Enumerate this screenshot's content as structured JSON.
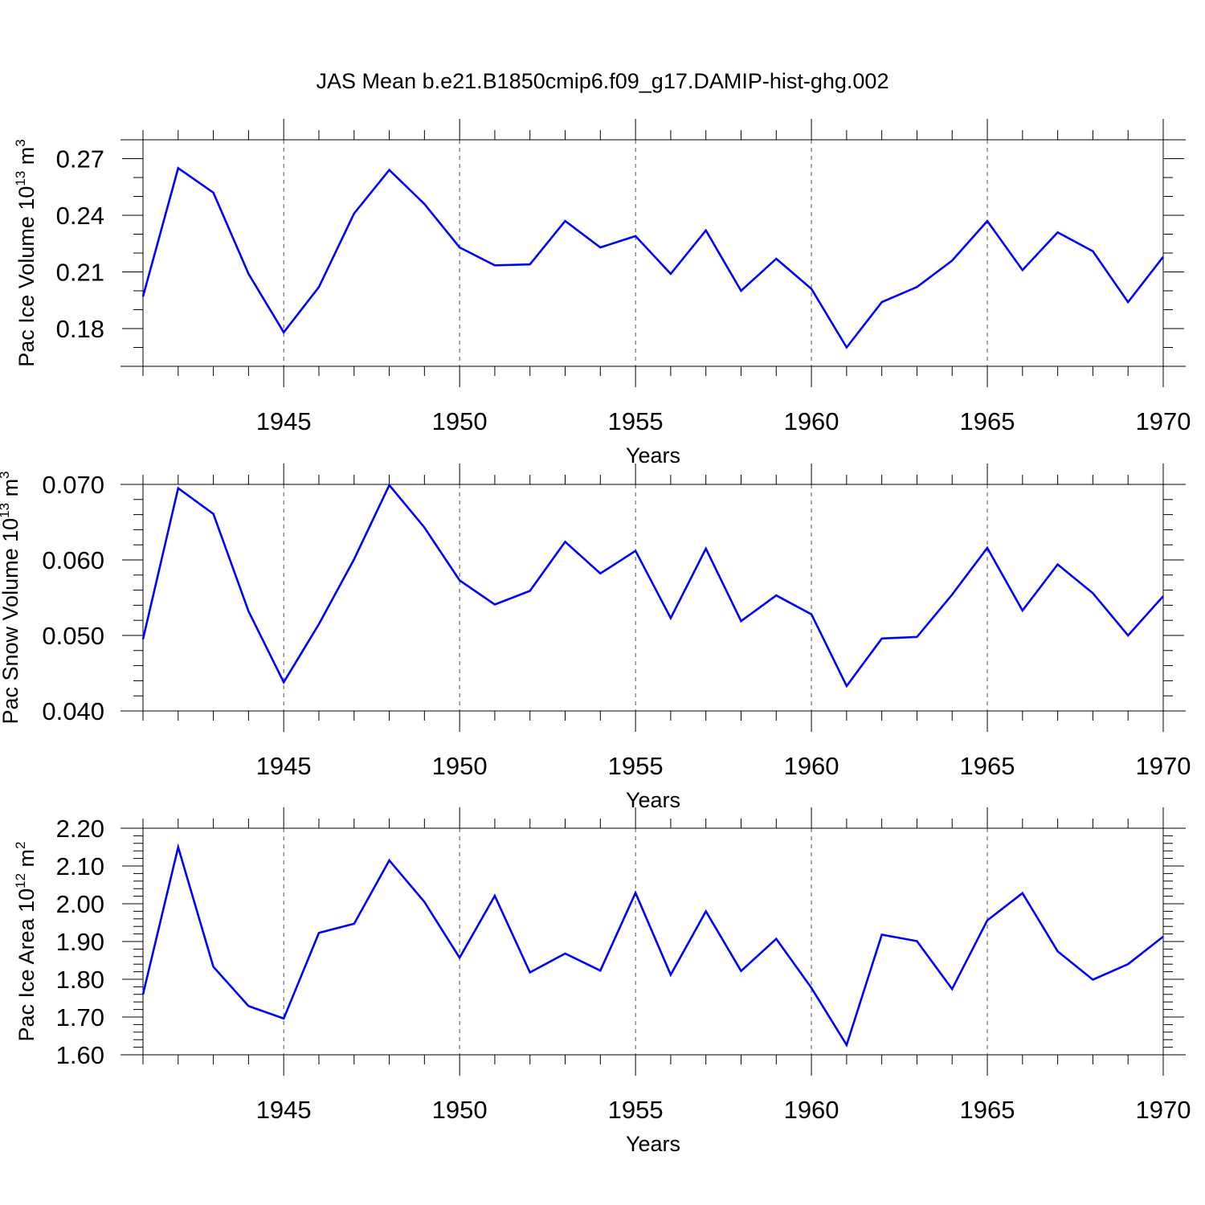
{
  "title": "JAS Mean b.e21.B1850cmip6.f09_g17.DAMIP-hist-ghg.002",
  "colors": {
    "line": "#0000ff",
    "axis": "#000000",
    "grid": "#555555"
  },
  "chart_data": [
    {
      "type": "line",
      "ylabel_main": "Pac Ice Volume 10",
      "ylabel_exp": "13",
      "ylabel_tail": " m",
      "ylabel_unit_exp": "3",
      "xlabel": "Years",
      "xlim": [
        1941,
        1970
      ],
      "ylim": [
        0.16,
        0.28
      ],
      "yticks": [
        0.18,
        0.21,
        0.24,
        0.27
      ],
      "ytick_labels": [
        "0.18",
        "0.21",
        "0.24",
        "0.27"
      ],
      "yminor_step": 0.01,
      "xticks": [
        1945,
        1950,
        1955,
        1960,
        1965,
        1970
      ],
      "xtick_labels": [
        "1945",
        "1950",
        "1955",
        "1960",
        "1965",
        "1970"
      ],
      "grid": "dashed vertical at major x ticks",
      "x": [
        1941,
        1942,
        1943,
        1944,
        1945,
        1946,
        1947,
        1948,
        1949,
        1950,
        1951,
        1952,
        1953,
        1954,
        1955,
        1956,
        1957,
        1958,
        1959,
        1960,
        1961,
        1962,
        1963,
        1964,
        1965,
        1966,
        1967,
        1968,
        1969,
        1970
      ],
      "series": [
        {
          "values": [
            0.197,
            0.265,
            0.252,
            0.209,
            0.178,
            0.202,
            0.241,
            0.264,
            0.246,
            0.223,
            0.2135,
            0.214,
            0.237,
            0.223,
            0.229,
            0.209,
            0.232,
            0.2,
            0.217,
            0.201,
            0.17,
            0.194,
            0.202,
            0.216,
            0.237,
            0.211,
            0.231,
            0.221,
            0.194,
            0.218
          ]
        }
      ]
    },
    {
      "type": "line",
      "ylabel_main": "Pac Snow Volume 10",
      "ylabel_exp": "13",
      "ylabel_tail": " m",
      "ylabel_unit_exp": "3",
      "xlabel": "Years",
      "xlim": [
        1941,
        1970
      ],
      "ylim": [
        0.04,
        0.07
      ],
      "yticks": [
        0.04,
        0.05,
        0.06,
        0.07
      ],
      "ytick_labels": [
        "0.040",
        "0.050",
        "0.060",
        "0.070"
      ],
      "yminor_step": 0.002,
      "xticks": [
        1945,
        1950,
        1955,
        1960,
        1965,
        1970
      ],
      "xtick_labels": [
        "1945",
        "1950",
        "1955",
        "1960",
        "1965",
        "1970"
      ],
      "grid": "dashed vertical at major x ticks",
      "x": [
        1941,
        1942,
        1943,
        1944,
        1945,
        1946,
        1947,
        1948,
        1949,
        1950,
        1951,
        1952,
        1953,
        1954,
        1955,
        1956,
        1957,
        1958,
        1959,
        1960,
        1961,
        1962,
        1963,
        1964,
        1965,
        1966,
        1967,
        1968,
        1969,
        1970
      ],
      "series": [
        {
          "values": [
            0.0495,
            0.0695,
            0.0661,
            0.0532,
            0.0438,
            0.0515,
            0.0601,
            0.0699,
            0.0643,
            0.0573,
            0.0541,
            0.0559,
            0.0624,
            0.0582,
            0.0612,
            0.0523,
            0.0615,
            0.0519,
            0.0553,
            0.0528,
            0.0433,
            0.0496,
            0.0498,
            0.0554,
            0.0616,
            0.0533,
            0.0594,
            0.0556,
            0.05,
            0.0552
          ]
        }
      ]
    },
    {
      "type": "line",
      "ylabel_main": "Pac Ice Area 10",
      "ylabel_exp": "12",
      "ylabel_tail": " m",
      "ylabel_unit_exp": "2",
      "xlabel": "Years",
      "xlim": [
        1941,
        1970
      ],
      "ylim": [
        1.6,
        2.2
      ],
      "yticks": [
        1.6,
        1.7,
        1.8,
        1.9,
        2.0,
        2.1,
        2.2
      ],
      "ytick_labels": [
        "1.60",
        "1.70",
        "1.80",
        "1.90",
        "2.00",
        "2.10",
        "2.20"
      ],
      "yminor_step": 0.02,
      "xticks": [
        1945,
        1950,
        1955,
        1960,
        1965,
        1970
      ],
      "xtick_labels": [
        "1945",
        "1950",
        "1955",
        "1960",
        "1965",
        "1970"
      ],
      "grid": "dashed vertical at major x ticks",
      "x": [
        1941,
        1942,
        1943,
        1944,
        1945,
        1946,
        1947,
        1948,
        1949,
        1950,
        1951,
        1952,
        1953,
        1954,
        1955,
        1956,
        1957,
        1958,
        1959,
        1960,
        1961,
        1962,
        1963,
        1964,
        1965,
        1966,
        1967,
        1968,
        1969,
        1970
      ],
      "series": [
        {
          "values": [
            1.76,
            2.15,
            1.833,
            1.729,
            1.696,
            1.923,
            1.947,
            2.115,
            2.005,
            1.857,
            2.021,
            1.818,
            1.868,
            1.823,
            2.029,
            1.812,
            1.98,
            1.822,
            1.907,
            1.777,
            1.626,
            1.918,
            1.901,
            1.774,
            1.956,
            2.028,
            1.874,
            1.799,
            1.84,
            1.913
          ]
        }
      ]
    }
  ]
}
